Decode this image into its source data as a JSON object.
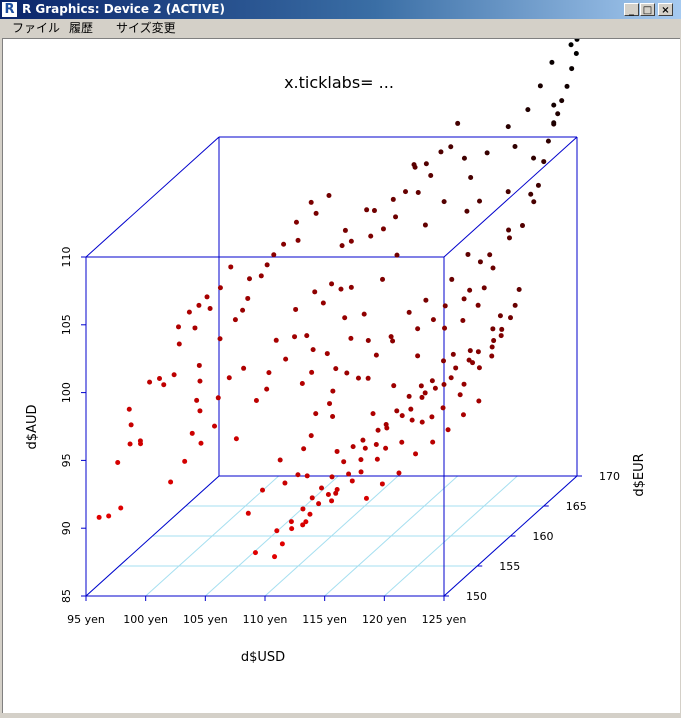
{
  "window": {
    "icon_letter": "R",
    "title": "R Graphics: Device 2 (ACTIVE)",
    "controls": {
      "minimize": "_",
      "maximize": "□",
      "close": "×"
    }
  },
  "menu": {
    "items": [
      "ファイル",
      "履歴",
      "サイズ変更"
    ]
  },
  "chart_data": {
    "type": "scatter",
    "title": "x.ticklabs= ...",
    "xlabel": "d$USD",
    "ylabel": "d$EUR",
    "zlabel": "d$AUD",
    "x_ticks": [
      "95 yen",
      "100 yen",
      "105 yen",
      "110 yen",
      "115 yen",
      "120 yen",
      "125 yen"
    ],
    "y_ticks": [
      "150",
      "155",
      "160",
      "165",
      "170"
    ],
    "z_ticks": [
      "85",
      "90",
      "95",
      "100",
      "105",
      "110"
    ],
    "xlim": [
      95,
      125
    ],
    "ylim": [
      150,
      170
    ],
    "zlim": [
      85,
      110
    ],
    "box_color": "#0000cc",
    "grid_color": "#a6dff0",
    "color_low": "#e00000",
    "color_high": "#000000",
    "points": [
      [
        96.1,
        150.0,
        90.8
      ],
      [
        96.9,
        150.0,
        90.9
      ],
      [
        97.8,
        150.2,
        91.4
      ],
      [
        97.1,
        151.0,
        94.4
      ],
      [
        98.9,
        151.2,
        95.7
      ],
      [
        97.8,
        151.6,
        95.5
      ],
      [
        97.4,
        152.2,
        97.8
      ],
      [
        98.5,
        151.9,
        95.6
      ],
      [
        97.5,
        152.3,
        96.6
      ],
      [
        99.6,
        152.8,
        99.8
      ],
      [
        98.6,
        153.1,
        99.4
      ],
      [
        99.9,
        152.9,
        99.3
      ],
      [
        100.6,
        153.2,
        99.9
      ],
      [
        100.7,
        153.8,
        101.9
      ],
      [
        100.3,
        154.4,
        102.9
      ],
      [
        101.1,
        154.6,
        103.9
      ],
      [
        101.9,
        154.6,
        104.4
      ],
      [
        102.3,
        155.1,
        104.8
      ],
      [
        103.2,
        155.5,
        105.3
      ],
      [
        103.9,
        155.8,
        106.7
      ],
      [
        102.5,
        155.2,
        103.9
      ],
      [
        101.4,
        154.9,
        102.6
      ],
      [
        101.7,
        150.7,
        93.1
      ],
      [
        102.6,
        151.2,
        94.4
      ],
      [
        103.8,
        151.5,
        95.6
      ],
      [
        102.9,
        151.8,
        96.2
      ],
      [
        104.6,
        152.1,
        96.6
      ],
      [
        103.1,
        152.6,
        97.5
      ],
      [
        102.6,
        153.0,
        98.1
      ],
      [
        102.6,
        153.5,
        99.3
      ],
      [
        102.1,
        154.3,
        100.1
      ],
      [
        103.5,
        154.9,
        101.8
      ],
      [
        104.4,
        155.6,
        102.9
      ],
      [
        105.1,
        156.2,
        104.2
      ],
      [
        105.9,
        156.8,
        105.6
      ],
      [
        104.8,
        157.0,
        105.3
      ],
      [
        106.5,
        157.6,
        106.8
      ],
      [
        107.1,
        158.0,
        107.4
      ],
      [
        107.9,
        158.5,
        108.8
      ],
      [
        108.8,
        159.1,
        110.0
      ],
      [
        109.1,
        159.3,
        109.1
      ],
      [
        109.9,
        159.8,
        110.2
      ],
      [
        108.2,
        158.2,
        107.6
      ],
      [
        106.0,
        157.5,
        106.1
      ],
      [
        104.5,
        156.5,
        103.2
      ],
      [
        104.3,
        153.2,
        98.2
      ],
      [
        105.0,
        153.6,
        99.5
      ],
      [
        105.7,
        154.5,
        99.8
      ],
      [
        107.5,
        153.2,
        98.0
      ],
      [
        106.6,
        151.8,
        95.8
      ],
      [
        108.1,
        155.1,
        101.6
      ],
      [
        109.3,
        155.7,
        101.6
      ],
      [
        110.1,
        156.1,
        101.5
      ],
      [
        111.1,
        156.8,
        103.6
      ],
      [
        112.3,
        157.3,
        104.4
      ],
      [
        113.0,
        157.6,
        104.4
      ],
      [
        112.5,
        158.5,
        107.4
      ],
      [
        113.9,
        158.9,
        107.6
      ],
      [
        114.8,
        159.2,
        108.0
      ],
      [
        113.6,
        160.0,
        109.0
      ],
      [
        114.9,
        160.5,
        109.6
      ],
      [
        115.7,
        160.9,
        110.0
      ],
      [
        116.6,
        161.2,
        109.8
      ],
      [
        116.0,
        161.8,
        111.4
      ],
      [
        115.2,
        160.3,
        108.4
      ],
      [
        110.8,
        155.8,
        100.6
      ],
      [
        109.0,
        154.9,
        100.3
      ],
      [
        110.9,
        154.0,
        98.9
      ],
      [
        108.1,
        154.0,
        99.7
      ],
      [
        113.0,
        156.6,
        102.6
      ],
      [
        112.1,
        155.6,
        100.4
      ],
      [
        111.4,
        154.5,
        99.5
      ],
      [
        111.4,
        157.5,
        104.7
      ],
      [
        111.5,
        158.9,
        106.9
      ],
      [
        111.5,
        159.4,
        107.8
      ],
      [
        113.0,
        159.9,
        109.1
      ],
      [
        115.8,
        162.0,
        111.5
      ],
      [
        116.5,
        162.6,
        111.3
      ],
      [
        117.5,
        163.0,
        112.0
      ],
      [
        118.1,
        163.4,
        112.2
      ],
      [
        118.4,
        163.9,
        113.7
      ],
      [
        117.2,
        162.0,
        110.7
      ],
      [
        110.1,
        157.3,
        104.2
      ],
      [
        109.0,
        156.4,
        103.3
      ],
      [
        107.8,
        154.2,
        98.4
      ],
      [
        108.1,
        150.9,
        90.7
      ],
      [
        108.9,
        151.6,
        92.1
      ],
      [
        110.5,
        152.1,
        92.4
      ],
      [
        111.2,
        152.8,
        92.7
      ],
      [
        111.4,
        153.3,
        94.4
      ],
      [
        111.7,
        153.9,
        95.1
      ],
      [
        111.8,
        154.4,
        96.5
      ],
      [
        112.9,
        154.5,
        97.2
      ],
      [
        112.9,
        155.0,
        97.9
      ],
      [
        114.6,
        155.8,
        98.5
      ],
      [
        115.3,
        156.0,
        98.4
      ],
      [
        115.6,
        156.7,
        99.8
      ],
      [
        116.5,
        157.3,
        100.9
      ],
      [
        118.5,
        157.7,
        101.3
      ],
      [
        119.6,
        158.1,
        101.8
      ],
      [
        120.2,
        158.8,
        102.5
      ],
      [
        121.5,
        159.3,
        102.8
      ],
      [
        121.8,
        159.6,
        103.3
      ],
      [
        122.8,
        160.0,
        103.3
      ],
      [
        123.2,
        160.6,
        104.5
      ],
      [
        122.7,
        161.0,
        105.3
      ],
      [
        123.8,
        162.0,
        106.1
      ],
      [
        124.5,
        162.7,
        106.7
      ],
      [
        125.0,
        163.5,
        108.1
      ],
      [
        125.0,
        164.2,
        109.0
      ],
      [
        125.0,
        165.0,
        110.4
      ],
      [
        125.0,
        165.7,
        111.6
      ],
      [
        125.0,
        166.5,
        112.5
      ],
      [
        125.0,
        167.1,
        113.0
      ],
      [
        125.0,
        167.7,
        113.7
      ],
      [
        125.0,
        168.5,
        114.4
      ],
      [
        125.0,
        169.2,
        115.4
      ],
      [
        125.0,
        169.9,
        116.2
      ],
      [
        124.0,
        168.3,
        113.1
      ],
      [
        124.5,
        167.4,
        112.2
      ],
      [
        123.7,
        165.8,
        110.3
      ],
      [
        124.3,
        164.3,
        108.3
      ],
      [
        121.7,
        161.4,
        104.6
      ],
      [
        120.6,
        161.5,
        105.1
      ],
      [
        119.8,
        160.5,
        103.7
      ],
      [
        118.3,
        159.3,
        102.7
      ],
      [
        117.4,
        158.4,
        102.2
      ],
      [
        116.4,
        157.7,
        100.4
      ],
      [
        114.7,
        157.1,
        100.7
      ],
      [
        113.4,
        156.2,
        98.7
      ],
      [
        113.1,
        154.6,
        96.2
      ],
      [
        109.6,
        153.0,
        93.7
      ],
      [
        112.2,
        152.4,
        92.8
      ],
      [
        114.2,
        153.3,
        94.2
      ],
      [
        116.6,
        154.4,
        96.5
      ],
      [
        117.5,
        155.9,
        97.9
      ],
      [
        119.0,
        156.8,
        99.7
      ],
      [
        120.7,
        157.8,
        101.3
      ],
      [
        121.9,
        158.4,
        101.6
      ],
      [
        122.9,
        158.9,
        102.5
      ],
      [
        123.5,
        162.4,
        106.5
      ],
      [
        122.8,
        163.6,
        108.8
      ],
      [
        120.9,
        162.7,
        108.5
      ],
      [
        119.9,
        162.6,
        107.8
      ],
      [
        118.8,
        164.2,
        111.0
      ],
      [
        120.2,
        165.1,
        111.0
      ],
      [
        121.3,
        166.3,
        112.4
      ],
      [
        122.5,
        167.1,
        113.3
      ],
      [
        123.1,
        167.9,
        114.7
      ],
      [
        123.4,
        169.1,
        115.9
      ],
      [
        124.2,
        170.0,
        117.5
      ],
      [
        124.5,
        170.0,
        116.8
      ],
      [
        125.0,
        170.0,
        117.2
      ],
      [
        122.2,
        165.7,
        111.2
      ],
      [
        119.6,
        163.7,
        109.8
      ],
      [
        118.1,
        162.4,
        108.6
      ],
      [
        117.2,
        161.2,
        107.4
      ],
      [
        115.6,
        159.8,
        105.8
      ],
      [
        115.0,
        158.7,
        104.5
      ],
      [
        114.3,
        157.2,
        102.6
      ],
      [
        113.8,
        156.1,
        101.3
      ],
      [
        112.7,
        155.8,
        99.2
      ],
      [
        109.2,
        150.0,
        88.2
      ],
      [
        110.8,
        150.0,
        87.9
      ],
      [
        111.4,
        150.1,
        88.8
      ],
      [
        111.9,
        150.6,
        89.7
      ],
      [
        112.6,
        151.0,
        89.8
      ],
      [
        113.1,
        151.2,
        90.5
      ],
      [
        113.6,
        151.6,
        91.1
      ],
      [
        114.2,
        152.0,
        91.6
      ],
      [
        114.7,
        152.2,
        91.6
      ],
      [
        115.5,
        152.7,
        92.8
      ],
      [
        116.2,
        153.3,
        93.6
      ],
      [
        116.4,
        153.6,
        94.3
      ],
      [
        117.1,
        154.0,
        94.4
      ],
      [
        117.7,
        154.5,
        95.4
      ],
      [
        118.6,
        155.2,
        96.0
      ],
      [
        119.1,
        155.6,
        96.3
      ],
      [
        119.7,
        156.2,
        96.9
      ],
      [
        120.6,
        156.6,
        97.4
      ],
      [
        121.1,
        157.0,
        97.5
      ],
      [
        121.8,
        157.5,
        98.5
      ],
      [
        122.7,
        157.9,
        98.9
      ],
      [
        123.2,
        158.4,
        99.3
      ],
      [
        124.2,
        158.9,
        99.9
      ],
      [
        124.6,
        159.4,
        100.5
      ],
      [
        125.0,
        160.0,
        101.1
      ],
      [
        125.0,
        160.7,
        101.7
      ],
      [
        125.0,
        161.3,
        102.6
      ],
      [
        124.1,
        160.1,
        101.2
      ],
      [
        123.8,
        159.5,
        100.5
      ],
      [
        122.3,
        158.8,
        99.2
      ],
      [
        121.1,
        158.4,
        99.1
      ],
      [
        120.5,
        158.0,
        98.8
      ],
      [
        119.9,
        157.4,
        97.6
      ],
      [
        119.2,
        157.0,
        97.4
      ],
      [
        118.4,
        156.6,
        96.8
      ],
      [
        117.7,
        156.0,
        96.0
      ],
      [
        117.2,
        155.3,
        95.3
      ],
      [
        116.8,
        154.8,
        95.1
      ],
      [
        115.7,
        154.5,
        94.5
      ],
      [
        115.1,
        154.1,
        94.2
      ],
      [
        114.7,
        153.4,
        93.4
      ],
      [
        114.0,
        152.9,
        92.5
      ],
      [
        113.4,
        152.4,
        91.9
      ],
      [
        112.9,
        151.9,
        91.4
      ],
      [
        112.4,
        151.4,
        90.8
      ],
      [
        111.6,
        151.1,
        90.0
      ],
      [
        110.6,
        150.7,
        89.5
      ],
      [
        113.2,
        150.4,
        90.3
      ],
      [
        114.8,
        151.4,
        91.4
      ],
      [
        116.2,
        152.0,
        92.6
      ],
      [
        117.8,
        152.9,
        93.8
      ],
      [
        119.4,
        153.7,
        94.7
      ],
      [
        120.5,
        154.8,
        95.7
      ],
      [
        121.8,
        155.6,
        96.4
      ],
      [
        123.0,
        156.6,
        97.7
      ],
      [
        123.9,
        157.3,
        98.6
      ],
      [
        124.6,
        157.9,
        99.2
      ],
      [
        125.0,
        158.6,
        100.4
      ],
      [
        122.9,
        156.2,
        97.1
      ],
      [
        121.2,
        155.0,
        96.0
      ],
      [
        119.6,
        154.9,
        95.8
      ],
      [
        118.1,
        153.6,
        94.3
      ],
      [
        116.6,
        152.6,
        93.0
      ],
      [
        115.1,
        151.7,
        92.1
      ],
      [
        119.8,
        156.5,
        97.1
      ],
      [
        121.7,
        157.0,
        98.0
      ],
      [
        123.1,
        157.7,
        98.8
      ],
      [
        124.3,
        158.5,
        99.6
      ],
      [
        118.0,
        150.9,
        91.8
      ],
      [
        119.0,
        151.5,
        92.6
      ],
      [
        120.0,
        152.2,
        93.1
      ],
      [
        121.0,
        152.9,
        94.2
      ],
      [
        122.1,
        153.5,
        94.8
      ],
      [
        123.0,
        154.2,
        95.4
      ],
      [
        123.9,
        154.9,
        96.2
      ],
      [
        124.8,
        155.6,
        96.9
      ]
    ]
  }
}
